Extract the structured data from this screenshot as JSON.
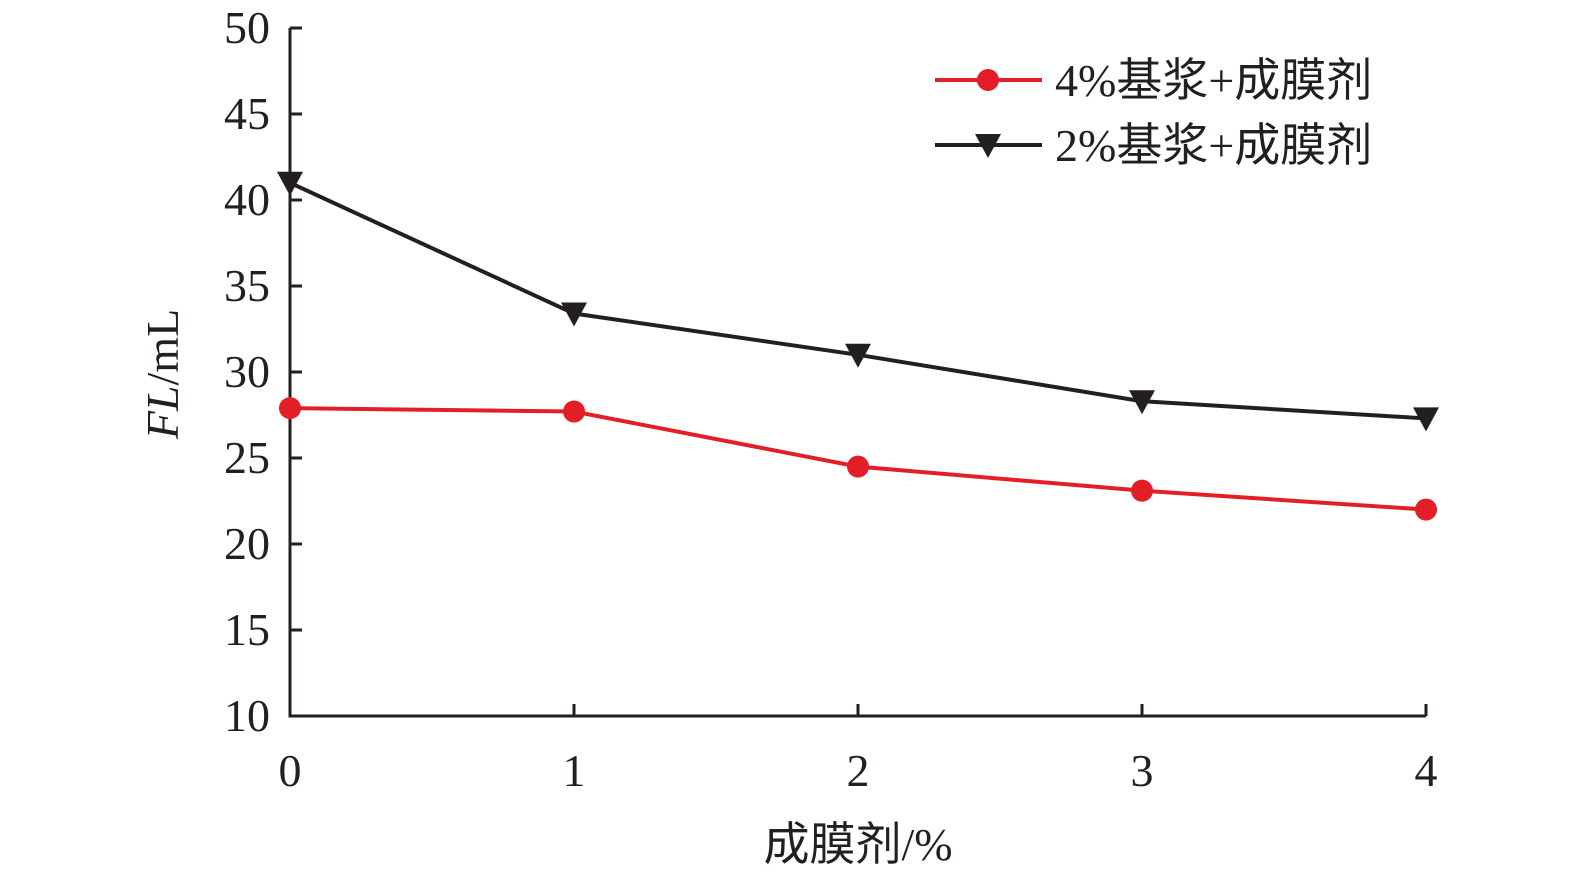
{
  "chart_data": {
    "type": "line",
    "x": [
      0,
      1,
      2,
      3,
      4
    ],
    "xlabel": "成膜剂/%",
    "ylabel_italic": "FL",
    "ylabel_unit": "/mL",
    "xlim": [
      0,
      4
    ],
    "ylim": [
      10,
      50
    ],
    "xticks": [
      "0",
      "1",
      "2",
      "3",
      "4"
    ],
    "yticks": [
      "10",
      "15",
      "20",
      "25",
      "30",
      "35",
      "40",
      "45",
      "50"
    ],
    "grid": false,
    "legend_position": "top-right",
    "series": [
      {
        "name": "4%基浆+成膜剂",
        "values": [
          27.9,
          27.7,
          24.5,
          23.1,
          22.0
        ],
        "color": "#e41e26",
        "marker": "circle"
      },
      {
        "name": "2%基浆+成膜剂",
        "values": [
          41.0,
          33.4,
          31.0,
          28.3,
          27.3
        ],
        "color": "#231f20",
        "marker": "triangle-down"
      }
    ]
  }
}
